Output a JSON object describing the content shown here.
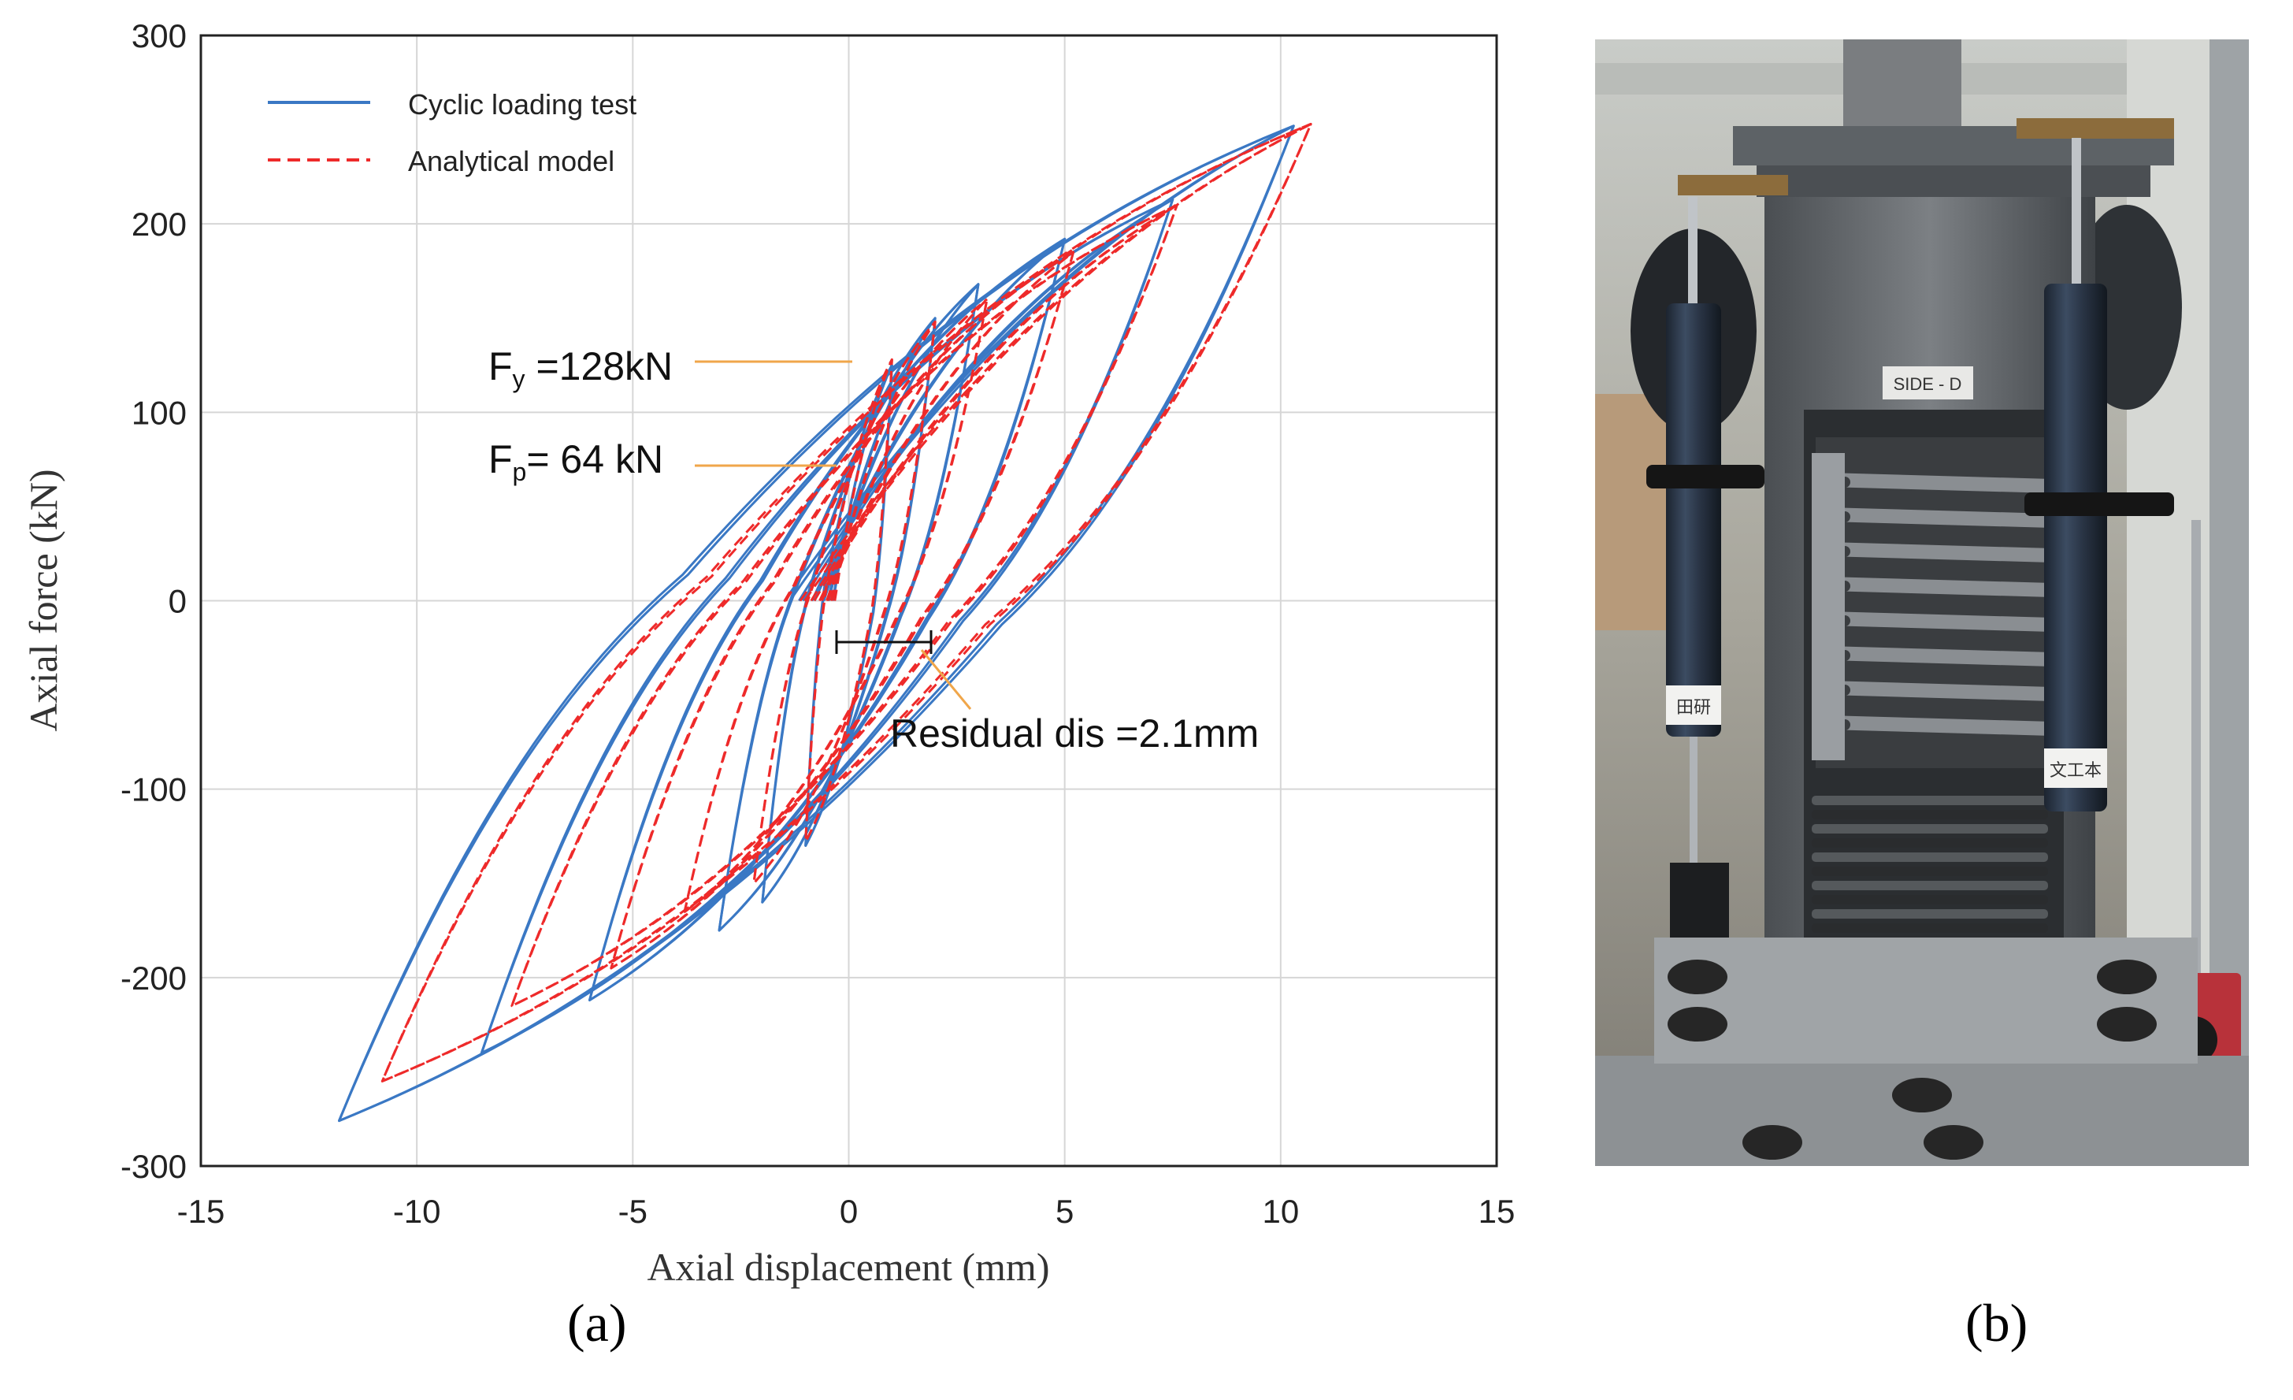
{
  "chart_data": {
    "type": "line",
    "xlabel": "Axial displacement (mm)",
    "ylabel": "Axial force (kN)",
    "xlim": [
      -15,
      15
    ],
    "ylim": [
      -300,
      300
    ],
    "xticks": [
      -15,
      -10,
      -5,
      0,
      5,
      10,
      15
    ],
    "yticks": [
      -300,
      -200,
      -100,
      0,
      100,
      200,
      300
    ],
    "xtick_labels": [
      "-15",
      "-10",
      "-5",
      "0",
      "5",
      "10",
      "15"
    ],
    "ytick_labels": [
      "-300",
      "-200",
      "-100",
      "0",
      "100",
      "200",
      "300"
    ],
    "grid": true,
    "legend_position": "top-left",
    "series": [
      {
        "name": "Cyclic loading test",
        "style": "solid",
        "color": "#3a78c4",
        "cycles": [
          {
            "dmax": 1.0,
            "fmax": 125,
            "dmin": -1.0,
            "fmin": -130
          },
          {
            "dmax": 2.0,
            "fmax": 150,
            "dmin": -2.0,
            "fmin": -160
          },
          {
            "dmax": 3.0,
            "fmax": 168,
            "dmin": -3.0,
            "fmin": -175
          },
          {
            "dmax": 5.0,
            "fmax": 192,
            "dmin": -6.0,
            "fmin": -212
          },
          {
            "dmax": 7.5,
            "fmax": 213,
            "dmin": -8.5,
            "fmin": -240
          },
          {
            "dmax": 10.3,
            "fmax": 252,
            "dmin": -11.8,
            "fmin": -276
          }
        ]
      },
      {
        "name": "Analytical model",
        "style": "dashed",
        "color": "#ee2a2a",
        "cycles": [
          {
            "dmax": 1.0,
            "fmax": 128,
            "dmin": -1.0,
            "fmin": -128
          },
          {
            "dmax": 2.0,
            "fmax": 148,
            "dmin": -2.2,
            "fmin": -150
          },
          {
            "dmax": 3.2,
            "fmax": 160,
            "dmin": -3.8,
            "fmin": -165
          },
          {
            "dmax": 5.2,
            "fmax": 185,
            "dmin": -5.5,
            "fmin": -195
          },
          {
            "dmax": 7.6,
            "fmax": 210,
            "dmin": -7.8,
            "fmin": -215
          },
          {
            "dmax": 10.7,
            "fmax": 253,
            "dmin": -10.8,
            "fmin": -255
          }
        ]
      }
    ],
    "annotations": [
      {
        "text": "F",
        "sub": "y",
        "rest": " =128kN",
        "x": 0.4,
        "y": 128
      },
      {
        "text": "F",
        "sub": "p",
        "rest": "= 64 kN",
        "x": 0.1,
        "y": 72
      },
      {
        "text": "Residual dis =2.1mm",
        "x1": 0.0,
        "x2": 2.1,
        "y": -20
      }
    ]
  },
  "photo": {
    "sticker": "SIDE - D",
    "tag_left": "田研",
    "tag_right": "文工本"
  },
  "panel_labels": {
    "a": "(a)",
    "b": "(b)"
  }
}
